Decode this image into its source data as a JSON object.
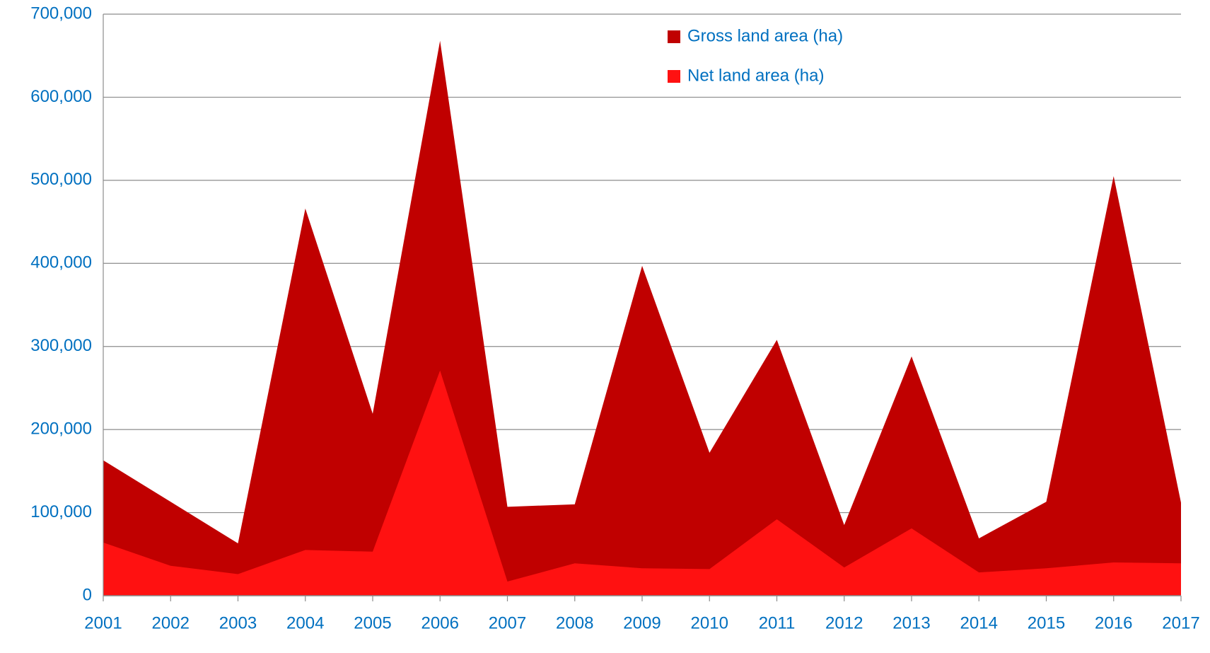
{
  "chart_data": {
    "type": "area",
    "categories": [
      "2001",
      "2002",
      "2003",
      "2004",
      "2005",
      "2006",
      "2007",
      "2008",
      "2009",
      "2010",
      "2011",
      "2012",
      "2013",
      "2014",
      "2015",
      "2016",
      "2017"
    ],
    "series": [
      {
        "name": "Gross land area (ha)",
        "color": "#c00000",
        "values": [
          163000,
          113000,
          63000,
          466000,
          219000,
          668000,
          107000,
          110000,
          397000,
          172000,
          308000,
          85000,
          288000,
          69000,
          113000,
          505000,
          112000
        ]
      },
      {
        "name": "Net land area (ha)",
        "color": "#ff1111",
        "values": [
          64000,
          36000,
          26000,
          55000,
          53000,
          271000,
          17000,
          39000,
          33000,
          32000,
          92000,
          34000,
          81000,
          28000,
          33000,
          40000,
          39000
        ]
      }
    ],
    "ylim": [
      0,
      700000
    ],
    "yticks": [
      0,
      {
        "value": 100000,
        "label": "100,000"
      },
      {
        "value": 200000,
        "label": "200,000"
      },
      {
        "value": 300000,
        "label": "300,000"
      },
      {
        "value": 400000,
        "label": "400,000"
      },
      {
        "value": 500000,
        "label": "500,000"
      },
      {
        "value": 600000,
        "label": "600,000"
      },
      {
        "value": 700000,
        "label": "700,000"
      }
    ],
    "grid": true,
    "legend": "top"
  }
}
